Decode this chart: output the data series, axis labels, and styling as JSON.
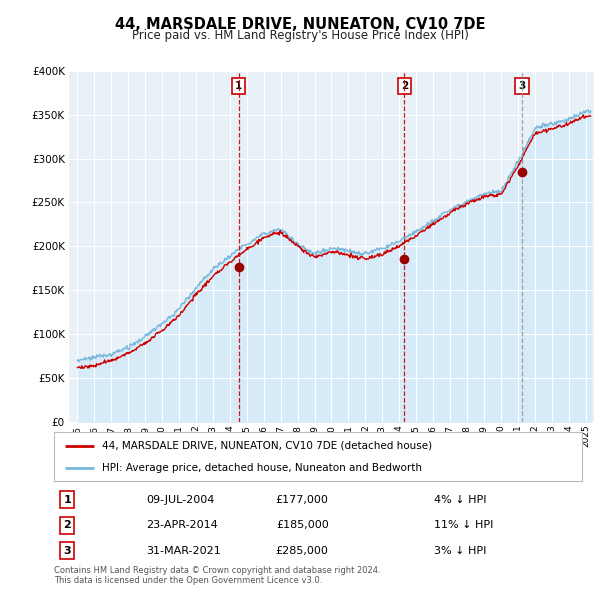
{
  "title": "44, MARSDALE DRIVE, NUNEATON, CV10 7DE",
  "subtitle": "Price paid vs. HM Land Registry's House Price Index (HPI)",
  "legend_line1": "44, MARSDALE DRIVE, NUNEATON, CV10 7DE (detached house)",
  "legend_line2": "HPI: Average price, detached house, Nuneaton and Bedworth",
  "footer1": "Contains HM Land Registry data © Crown copyright and database right 2024.",
  "footer2": "This data is licensed under the Open Government Licence v3.0.",
  "transactions": [
    {
      "num": 1,
      "date": "09-JUL-2004",
      "price": "£177,000",
      "note": "4% ↓ HPI",
      "year": 2004.53,
      "price_val": 177000
    },
    {
      "num": 2,
      "date": "23-APR-2014",
      "price": "£185,000",
      "note": "11% ↓ HPI",
      "year": 2014.31,
      "price_val": 185000
    },
    {
      "num": 3,
      "date": "31-MAR-2021",
      "price": "£285,000",
      "note": "3% ↓ HPI",
      "year": 2021.25,
      "price_val": 285000
    }
  ],
  "hpi_color": "#7ab8d9",
  "hpi_fill_color": "#d6eaf8",
  "price_color": "#cc0000",
  "vline_color_red": "#cc0000",
  "vline_color_grey": "#999999",
  "dot_color": "#990000",
  "background_color": "#e8f0f8",
  "plot_bg": "#e8f0f8",
  "grid_color": "#ffffff",
  "ylim": [
    0,
    400000
  ],
  "ytick_max": 400000,
  "xlim_start": 1994.5,
  "xlim_end": 2025.5,
  "years": [
    1995,
    1996,
    1997,
    1998,
    1999,
    2000,
    2001,
    2002,
    2003,
    2004,
    2005,
    2006,
    2007,
    2008,
    2009,
    2010,
    2011,
    2012,
    2013,
    2014,
    2015,
    2016,
    2017,
    2018,
    2019,
    2020,
    2021,
    2022,
    2023,
    2024,
    2025
  ],
  "hpi_vals": [
    68000,
    70000,
    76000,
    84000,
    96000,
    110000,
    128000,
    152000,
    172000,
    188000,
    202000,
    215000,
    222000,
    205000,
    193000,
    200000,
    196000,
    192000,
    196000,
    206000,
    218000,
    230000,
    242000,
    252000,
    260000,
    262000,
    295000,
    335000,
    340000,
    345000,
    355000
  ],
  "price_vals": [
    65000,
    67000,
    73000,
    81000,
    93000,
    107000,
    124000,
    147000,
    167000,
    183000,
    197000,
    210000,
    216000,
    199000,
    187000,
    194000,
    190000,
    186000,
    190000,
    200000,
    212000,
    224000,
    236000,
    246000,
    254000,
    256000,
    288000,
    325000,
    332000,
    338000,
    348000
  ]
}
